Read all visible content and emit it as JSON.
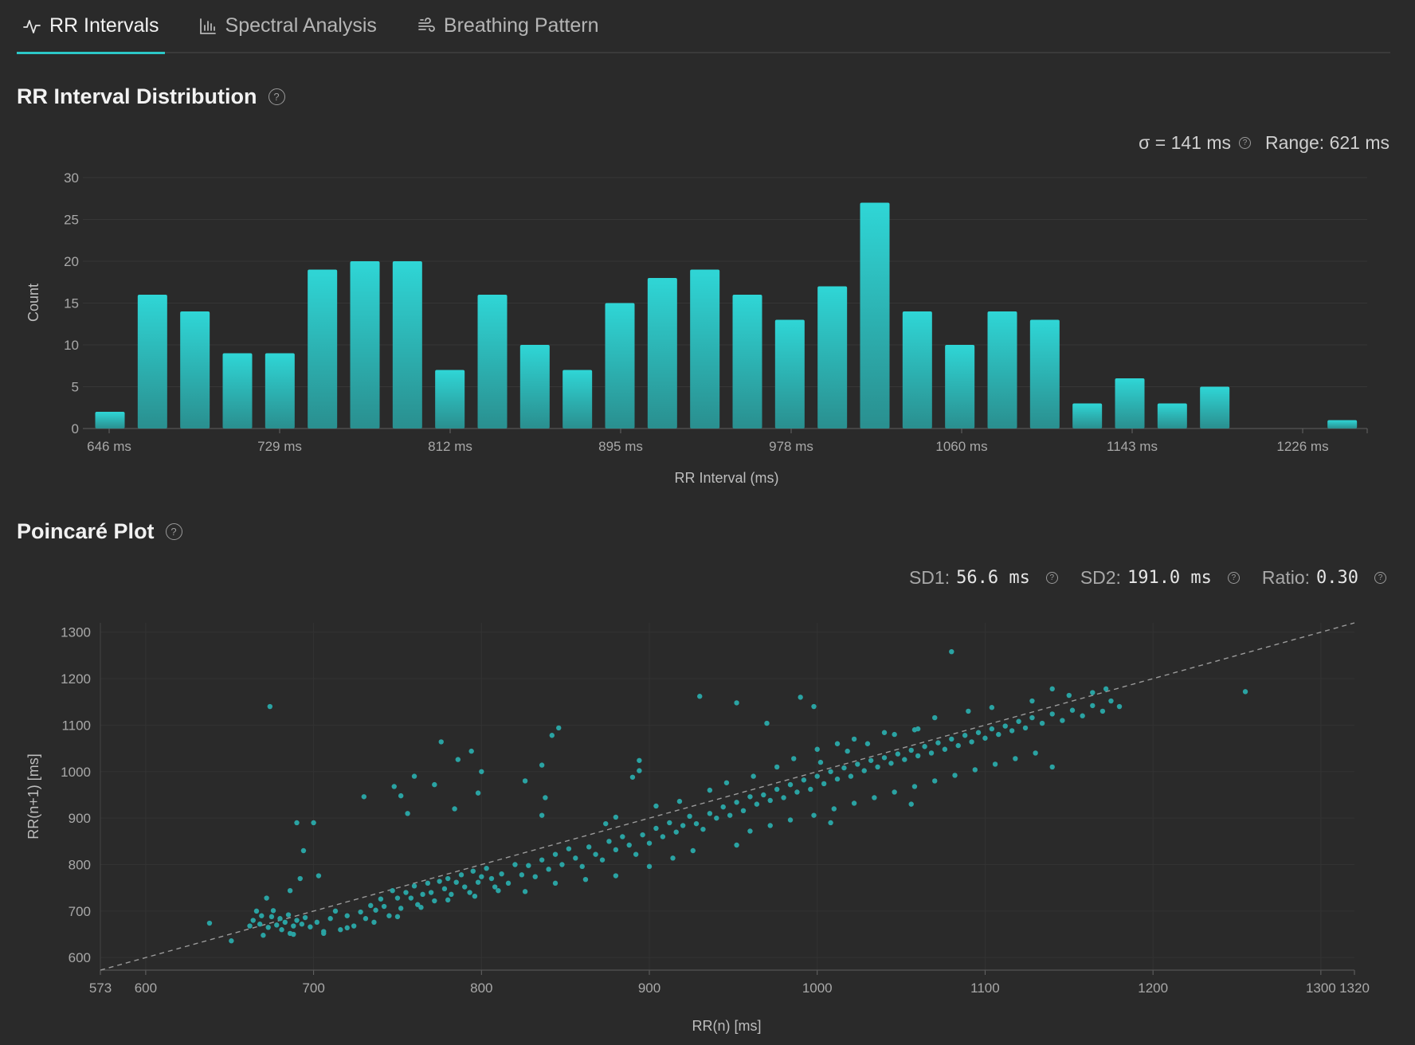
{
  "tabs": [
    {
      "label": "RR Intervals",
      "icon": "activity-icon",
      "active": true
    },
    {
      "label": "Spectral Analysis",
      "icon": "bar-chart-icon",
      "active": false
    },
    {
      "label": "Breathing Pattern",
      "icon": "wind-icon",
      "active": false
    }
  ],
  "histogram": {
    "title": "RR Interval Distribution",
    "sigma": "σ = 141 ms",
    "range": "Range: 621 ms"
  },
  "poincare": {
    "title": "Poincaré Plot",
    "sd1_label": "SD1:",
    "sd1_value": "56.6 ms",
    "sd2_label": "SD2:",
    "sd2_value": "191.0 ms",
    "ratio_label": "Ratio:",
    "ratio_value": "0.30"
  },
  "colors": {
    "accent": "#2cc8c8",
    "point": "#2aa3a3",
    "background": "#2a2a2a"
  },
  "chart_data": [
    {
      "type": "bar",
      "xlabel": "RR Interval (ms)",
      "ylabel": "Count",
      "ylim": [
        0,
        30
      ],
      "yticks": [
        0,
        5,
        10,
        15,
        20,
        25,
        30
      ],
      "xticks": [
        "646 ms",
        "729 ms",
        "812 ms",
        "895 ms",
        "978 ms",
        "1060 ms",
        "1143 ms",
        "1226 ms"
      ],
      "bin_start": 646,
      "bin_width": 20.7,
      "values": [
        2,
        16,
        14,
        9,
        9,
        19,
        20,
        20,
        7,
        16,
        10,
        7,
        15,
        18,
        19,
        16,
        13,
        17,
        27,
        14,
        10,
        14,
        13,
        3,
        6,
        3,
        5,
        0,
        0,
        1
      ],
      "grid": true
    },
    {
      "type": "scatter",
      "xlabel": "RR(n) [ms]",
      "ylabel": "RR(n+1) [ms]",
      "xlim": [
        573,
        1320
      ],
      "ylim": [
        573,
        1320
      ],
      "xticks": [
        573,
        600,
        700,
        800,
        900,
        1000,
        1100,
        1200,
        1300,
        1320
      ],
      "yticks": [
        600,
        700,
        800,
        900,
        1000,
        1100,
        1200,
        1300
      ],
      "identity_line": true,
      "grid": true,
      "points": [
        [
          638,
          674
        ],
        [
          651,
          636
        ],
        [
          662,
          668
        ],
        [
          664,
          680
        ],
        [
          666,
          700
        ],
        [
          668,
          672
        ],
        [
          669,
          690
        ],
        [
          672,
          728
        ],
        [
          673,
          665
        ],
        [
          675,
          688
        ],
        [
          676,
          701
        ],
        [
          678,
          670
        ],
        [
          680,
          684
        ],
        [
          681,
          660
        ],
        [
          683,
          676
        ],
        [
          685,
          692
        ],
        [
          686,
          652
        ],
        [
          688,
          668
        ],
        [
          690,
          680
        ],
        [
          693,
          672
        ],
        [
          695,
          686
        ],
        [
          698,
          666
        ],
        [
          702,
          676
        ],
        [
          706,
          656
        ],
        [
          710,
          684
        ],
        [
          713,
          700
        ],
        [
          716,
          660
        ],
        [
          720,
          690
        ],
        [
          724,
          668
        ],
        [
          728,
          698
        ],
        [
          731,
          684
        ],
        [
          734,
          712
        ],
        [
          737,
          702
        ],
        [
          740,
          726
        ],
        [
          742,
          710
        ],
        [
          745,
          690
        ],
        [
          747,
          744
        ],
        [
          750,
          728
        ],
        [
          752,
          706
        ],
        [
          755,
          740
        ],
        [
          758,
          728
        ],
        [
          760,
          754
        ],
        [
          762,
          714
        ],
        [
          765,
          736
        ],
        [
          768,
          760
        ],
        [
          770,
          740
        ],
        [
          772,
          722
        ],
        [
          775,
          764
        ],
        [
          778,
          748
        ],
        [
          780,
          770
        ],
        [
          782,
          736
        ],
        [
          785,
          762
        ],
        [
          788,
          778
        ],
        [
          790,
          752
        ],
        [
          793,
          740
        ],
        [
          795,
          786
        ],
        [
          798,
          762
        ],
        [
          800,
          774
        ],
        [
          803,
          792
        ],
        [
          806,
          770
        ],
        [
          808,
          752
        ],
        [
          812,
          780
        ],
        [
          816,
          760
        ],
        [
          820,
          800
        ],
        [
          824,
          778
        ],
        [
          828,
          798
        ],
        [
          832,
          774
        ],
        [
          836,
          810
        ],
        [
          840,
          790
        ],
        [
          844,
          822
        ],
        [
          848,
          800
        ],
        [
          852,
          834
        ],
        [
          856,
          814
        ],
        [
          860,
          796
        ],
        [
          864,
          838
        ],
        [
          868,
          822
        ],
        [
          872,
          810
        ],
        [
          876,
          850
        ],
        [
          880,
          832
        ],
        [
          884,
          860
        ],
        [
          888,
          842
        ],
        [
          892,
          822
        ],
        [
          896,
          864
        ],
        [
          900,
          846
        ],
        [
          904,
          878
        ],
        [
          908,
          860
        ],
        [
          912,
          890
        ],
        [
          916,
          870
        ],
        [
          920,
          884
        ],
        [
          924,
          904
        ],
        [
          928,
          888
        ],
        [
          932,
          876
        ],
        [
          936,
          910
        ],
        [
          940,
          900
        ],
        [
          944,
          924
        ],
        [
          948,
          906
        ],
        [
          952,
          934
        ],
        [
          956,
          916
        ],
        [
          960,
          946
        ],
        [
          964,
          930
        ],
        [
          968,
          950
        ],
        [
          972,
          938
        ],
        [
          976,
          962
        ],
        [
          980,
          944
        ],
        [
          984,
          972
        ],
        [
          988,
          956
        ],
        [
          992,
          982
        ],
        [
          996,
          962
        ],
        [
          1000,
          990
        ],
        [
          1004,
          974
        ],
        [
          1008,
          1000
        ],
        [
          1012,
          984
        ],
        [
          1016,
          1008
        ],
        [
          1020,
          990
        ],
        [
          1024,
          1016
        ],
        [
          1028,
          1002
        ],
        [
          1032,
          1024
        ],
        [
          1036,
          1010
        ],
        [
          1040,
          1030
        ],
        [
          1044,
          1018
        ],
        [
          1048,
          1038
        ],
        [
          1052,
          1026
        ],
        [
          1056,
          1046
        ],
        [
          1060,
          1034
        ],
        [
          1064,
          1054
        ],
        [
          1068,
          1040
        ],
        [
          1072,
          1062
        ],
        [
          1076,
          1048
        ],
        [
          1080,
          1070
        ],
        [
          1084,
          1056
        ],
        [
          1088,
          1078
        ],
        [
          1092,
          1064
        ],
        [
          1096,
          1084
        ],
        [
          1100,
          1072
        ],
        [
          1104,
          1092
        ],
        [
          1108,
          1080
        ],
        [
          1112,
          1098
        ],
        [
          1116,
          1088
        ],
        [
          1120,
          1108
        ],
        [
          1124,
          1094
        ],
        [
          1128,
          1116
        ],
        [
          1134,
          1104
        ],
        [
          1140,
          1124
        ],
        [
          1146,
          1110
        ],
        [
          1152,
          1132
        ],
        [
          1158,
          1120
        ],
        [
          1164,
          1142
        ],
        [
          1170,
          1130
        ],
        [
          1175,
          1152
        ],
        [
          1180,
          1140
        ],
        [
          674,
          1140
        ],
        [
          690,
          890
        ],
        [
          700,
          890
        ],
        [
          694,
          830
        ],
        [
          686,
          744
        ],
        [
          692,
          770
        ],
        [
          703,
          776
        ],
        [
          730,
          946
        ],
        [
          748,
          968
        ],
        [
          752,
          948
        ],
        [
          756,
          910
        ],
        [
          760,
          990
        ],
        [
          772,
          972
        ],
        [
          784,
          920
        ],
        [
          786,
          1026
        ],
        [
          794,
          1044
        ],
        [
          800,
          1000
        ],
        [
          776,
          1064
        ],
        [
          798,
          954
        ],
        [
          836,
          1014
        ],
        [
          846,
          1094
        ],
        [
          842,
          1078
        ],
        [
          838,
          944
        ],
        [
          826,
          980
        ],
        [
          836,
          906
        ],
        [
          874,
          888
        ],
        [
          894,
          1024
        ],
        [
          890,
          988
        ],
        [
          894,
          1002
        ],
        [
          930,
          1162
        ],
        [
          952,
          1148
        ],
        [
          970,
          1104
        ],
        [
          990,
          1160
        ],
        [
          998,
          1140
        ],
        [
          1080,
          1258
        ],
        [
          1140,
          1178
        ],
        [
          1172,
          1178
        ],
        [
          1255,
          1172
        ],
        [
          1140,
          1010
        ],
        [
          1056,
          930
        ],
        [
          1008,
          890
        ],
        [
          952,
          842
        ],
        [
          926,
          830
        ],
        [
          914,
          814
        ],
        [
          900,
          796
        ],
        [
          880,
          776
        ],
        [
          862,
          768
        ],
        [
          844,
          760
        ],
        [
          826,
          742
        ],
        [
          810,
          744
        ],
        [
          796,
          732
        ],
        [
          780,
          724
        ],
        [
          764,
          708
        ],
        [
          750,
          688
        ],
        [
          736,
          676
        ],
        [
          720,
          664
        ],
        [
          706,
          652
        ],
        [
          688,
          650
        ],
        [
          670,
          648
        ],
        [
          1002,
          1020
        ],
        [
          1018,
          1044
        ],
        [
          1030,
          1060
        ],
        [
          1046,
          1080
        ],
        [
          1058,
          1090
        ],
        [
          1070,
          1116
        ],
        [
          1090,
          1130
        ],
        [
          1104,
          1138
        ],
        [
          1128,
          1152
        ],
        [
          1150,
          1164
        ],
        [
          1164,
          1170
        ],
        [
          880,
          902
        ],
        [
          904,
          926
        ],
        [
          918,
          936
        ],
        [
          936,
          960
        ],
        [
          946,
          976
        ],
        [
          962,
          990
        ],
        [
          976,
          1010
        ],
        [
          986,
          1028
        ],
        [
          1000,
          1048
        ],
        [
          1012,
          1060
        ],
        [
          1022,
          1070
        ],
        [
          1040,
          1084
        ],
        [
          1060,
          1092
        ],
        [
          960,
          872
        ],
        [
          972,
          884
        ],
        [
          984,
          896
        ],
        [
          998,
          906
        ],
        [
          1010,
          920
        ],
        [
          1022,
          932
        ],
        [
          1034,
          944
        ],
        [
          1046,
          956
        ],
        [
          1058,
          968
        ],
        [
          1070,
          980
        ],
        [
          1082,
          992
        ],
        [
          1094,
          1004
        ],
        [
          1106,
          1016
        ],
        [
          1118,
          1028
        ],
        [
          1130,
          1040
        ]
      ]
    }
  ]
}
